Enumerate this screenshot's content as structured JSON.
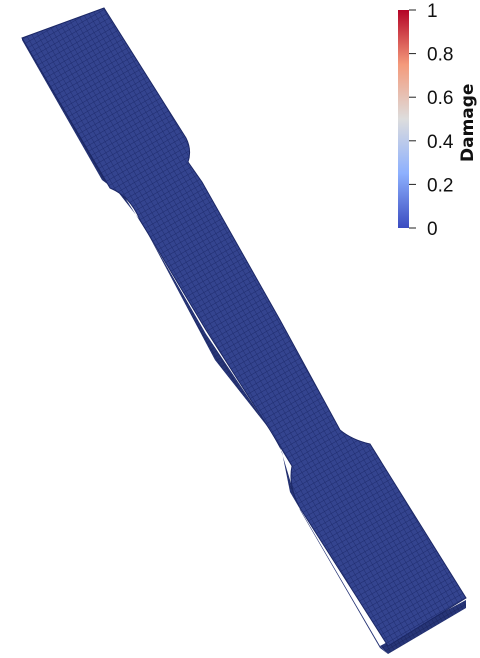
{
  "colorbar": {
    "title": "Damage",
    "ticks": [
      {
        "value": 1,
        "label": "1"
      },
      {
        "value": 0.8,
        "label": "0.8"
      },
      {
        "value": 0.6,
        "label": "0.6"
      },
      {
        "value": 0.4,
        "label": "0.4"
      },
      {
        "value": 0.2,
        "label": "0.2"
      },
      {
        "value": 0,
        "label": "0"
      }
    ],
    "range": [
      0,
      1
    ],
    "colormap": [
      "#3b4cc0",
      "#8db0fe",
      "#dddddd",
      "#f49a7b",
      "#b40426"
    ]
  },
  "specimen": {
    "color_value": 0,
    "base_color": "#34448f"
  }
}
